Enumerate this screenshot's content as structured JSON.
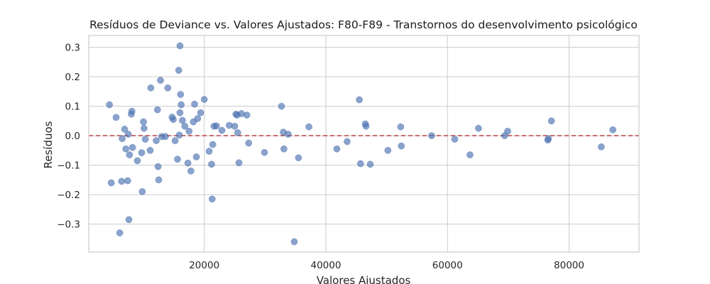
{
  "chart_data": {
    "type": "scatter",
    "title": "Resíduos de Deviance vs. Valores Ajustados: F80-F89 - Transtornos do desenvolvimento psicológico",
    "xlabel": "Valores Ajustados",
    "ylabel": "Resíduos",
    "xlim": [
      1000,
      91500
    ],
    "ylim": [
      -0.395,
      0.34
    ],
    "x_ticks": [
      20000,
      40000,
      60000,
      80000
    ],
    "x_tick_labels": [
      "20000",
      "40000",
      "60000",
      "80000"
    ],
    "y_ticks": [
      -0.3,
      -0.2,
      -0.1,
      0.0,
      0.1,
      0.2,
      0.3
    ],
    "y_tick_labels": [
      "−0.3",
      "−0.2",
      "−0.1",
      "0.0",
      "0.1",
      "0.2",
      "0.3"
    ],
    "grid": true,
    "reference_line": {
      "y": 0.0,
      "style": "dashed",
      "color": "#c44e52"
    },
    "point_color": "#4c72b0",
    "points": [
      [
        4400,
        0.105
      ],
      [
        4700,
        -0.16
      ],
      [
        5500,
        0.062
      ],
      [
        6100,
        -0.33
      ],
      [
        6400,
        -0.155
      ],
      [
        6500,
        -0.01
      ],
      [
        6900,
        0.022
      ],
      [
        7100,
        -0.045
      ],
      [
        7400,
        -0.153
      ],
      [
        7500,
        0.005
      ],
      [
        7700,
        -0.065
      ],
      [
        7600,
        -0.285
      ],
      [
        8000,
        0.073
      ],
      [
        8100,
        0.083
      ],
      [
        8200,
        -0.04
      ],
      [
        9000,
        -0.085
      ],
      [
        9700,
        -0.058
      ],
      [
        9800,
        -0.19
      ],
      [
        10000,
        0.047
      ],
      [
        10100,
        0.025
      ],
      [
        10300,
        -0.012
      ],
      [
        11100,
        -0.05
      ],
      [
        11200,
        0.162
      ],
      [
        12100,
        -0.017
      ],
      [
        12300,
        0.088
      ],
      [
        12400,
        -0.105
      ],
      [
        12500,
        -0.15
      ],
      [
        12800,
        0.188
      ],
      [
        13000,
        -0.003
      ],
      [
        13600,
        -0.003
      ],
      [
        14000,
        0.162
      ],
      [
        14700,
        0.063
      ],
      [
        14900,
        0.055
      ],
      [
        15200,
        -0.017
      ],
      [
        15600,
        -0.08
      ],
      [
        15800,
        0.222
      ],
      [
        15900,
        0.002
      ],
      [
        16000,
        0.305
      ],
      [
        16000,
        0.078
      ],
      [
        16100,
        0.14
      ],
      [
        16200,
        0.105
      ],
      [
        16400,
        0.052
      ],
      [
        16800,
        0.032
      ],
      [
        17300,
        -0.093
      ],
      [
        17500,
        0.015
      ],
      [
        17800,
        -0.12
      ],
      [
        18200,
        0.047
      ],
      [
        18400,
        0.107
      ],
      [
        18700,
        -0.072
      ],
      [
        18900,
        0.058
      ],
      [
        19400,
        0.078
      ],
      [
        20000,
        0.123
      ],
      [
        20800,
        -0.053
      ],
      [
        21200,
        -0.097
      ],
      [
        21400,
        -0.03
      ],
      [
        21300,
        -0.215
      ],
      [
        21600,
        0.032
      ],
      [
        22000,
        0.033
      ],
      [
        22900,
        0.018
      ],
      [
        24100,
        0.035
      ],
      [
        25000,
        0.032
      ],
      [
        25200,
        0.073
      ],
      [
        25400,
        0.07
      ],
      [
        25500,
        0.01
      ],
      [
        25700,
        -0.092
      ],
      [
        26100,
        0.075
      ],
      [
        27000,
        0.07
      ],
      [
        27300,
        -0.025
      ],
      [
        29900,
        -0.057
      ],
      [
        32700,
        0.1
      ],
      [
        33000,
        0.012
      ],
      [
        33100,
        -0.045
      ],
      [
        33800,
        0.005
      ],
      [
        34800,
        -0.36
      ],
      [
        35500,
        -0.075
      ],
      [
        37200,
        0.03
      ],
      [
        41800,
        -0.045
      ],
      [
        43500,
        -0.02
      ],
      [
        45500,
        0.122
      ],
      [
        45700,
        -0.095
      ],
      [
        46500,
        0.04
      ],
      [
        46600,
        0.032
      ],
      [
        47300,
        -0.097
      ],
      [
        50200,
        -0.05
      ],
      [
        52300,
        0.03
      ],
      [
        52400,
        -0.035
      ],
      [
        57400,
        0.0
      ],
      [
        61200,
        -0.012
      ],
      [
        63700,
        -0.065
      ],
      [
        65100,
        0.025
      ],
      [
        69400,
        0.0
      ],
      [
        69900,
        0.015
      ],
      [
        76500,
        -0.015
      ],
      [
        76600,
        -0.01
      ],
      [
        77100,
        0.05
      ],
      [
        85300,
        -0.038
      ],
      [
        87200,
        0.02
      ]
    ]
  }
}
